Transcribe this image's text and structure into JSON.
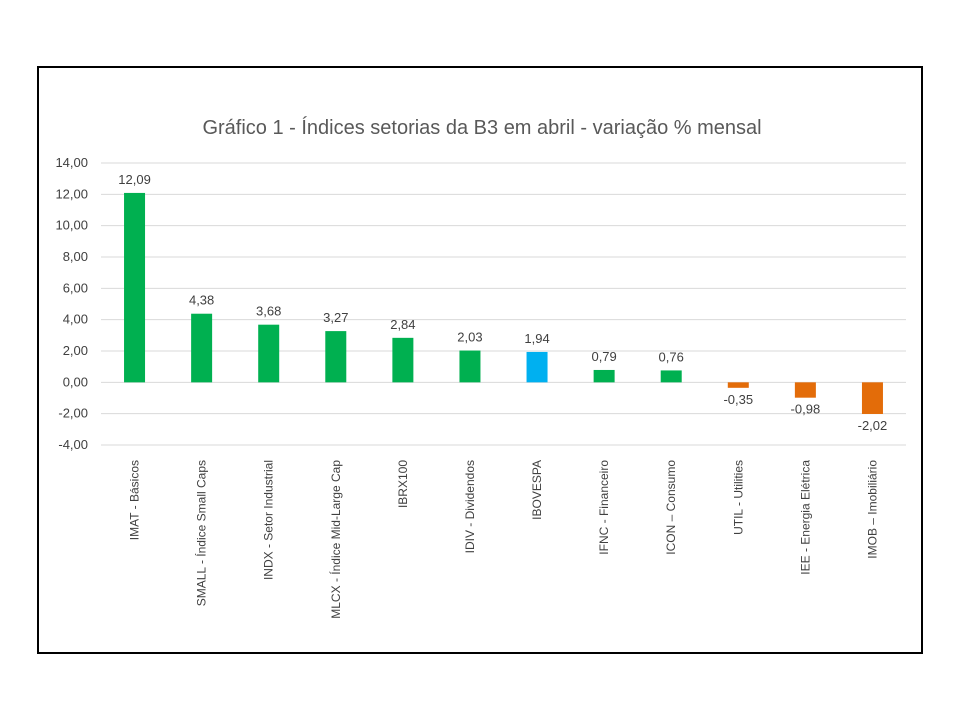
{
  "chart_data": {
    "type": "bar",
    "title": "Gráfico 1 - Índices setorias da B3 em abril - variação % mensal",
    "xlabel": "",
    "ylabel": "",
    "ylim": [
      -4,
      14
    ],
    "ytick_step": 2,
    "ytick_labels": [
      "14,00",
      "12,00",
      "10,00",
      "8,00",
      "6,00",
      "4,00",
      "2,00",
      "0,00",
      "-2,00",
      "-4,00"
    ],
    "grid": true,
    "legend": "none",
    "categories": [
      "IMAT - Básicos",
      "SMALL - Índice Small Caps",
      "INDX - Setor Industrial",
      "MLCX - Índice Mid-Large Cap",
      "IBRX100",
      "IDIV - Dividendos",
      "IBOVESPA",
      "IFNC - Financeiro",
      "ICON – Consumo",
      "UTIL - Utilities",
      "IEE - Energia Elétrica",
      "IMOB – Imobiliário"
    ],
    "values": [
      12.09,
      4.38,
      3.68,
      3.27,
      2.84,
      2.03,
      1.94,
      0.79,
      0.76,
      -0.35,
      -0.98,
      -2.02
    ],
    "value_labels": [
      "12,09",
      "4,38",
      "3,68",
      "3,27",
      "2,84",
      "2,03",
      "1,94",
      "0,79",
      "0,76",
      "-0,35",
      "-0,98",
      "-2,02"
    ],
    "bar_colors": [
      "#00b050",
      "#00b050",
      "#00b050",
      "#00b050",
      "#00b050",
      "#00b050",
      "#00b0f0",
      "#00b050",
      "#00b050",
      "#e36c09",
      "#e36c09",
      "#e36c09"
    ],
    "gridline_color": "#d9d9d9"
  }
}
